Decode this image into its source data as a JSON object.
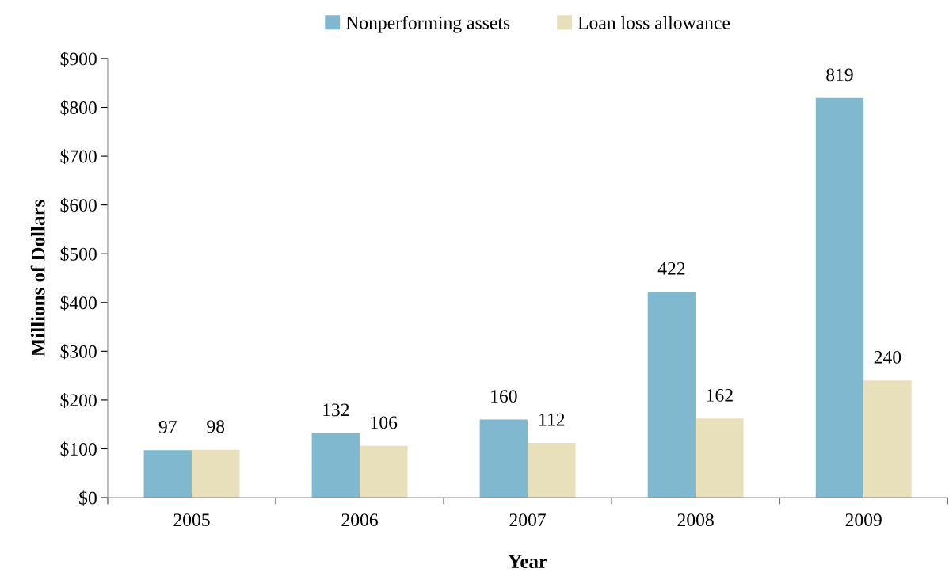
{
  "chart_data": {
    "type": "bar",
    "xlabel": "Year",
    "ylabel": "Millions of Dollars",
    "categories": [
      "2005",
      "2006",
      "2007",
      "2008",
      "2009"
    ],
    "series": [
      {
        "name": "Nonperforming assets",
        "color": "#7fb8cf",
        "values": [
          97,
          132,
          160,
          422,
          819
        ]
      },
      {
        "name": "Loan loss allowance",
        "color": "#e8dfbb",
        "values": [
          98,
          106,
          112,
          162,
          240
        ]
      }
    ],
    "ylim": [
      0,
      900
    ],
    "yticks": [
      {
        "value": 0,
        "label": "$0"
      },
      {
        "value": 100,
        "label": "$100"
      },
      {
        "value": 200,
        "label": "$200"
      },
      {
        "value": 300,
        "label": "$300"
      },
      {
        "value": 400,
        "label": "$400"
      },
      {
        "value": 500,
        "label": "$500"
      },
      {
        "value": 600,
        "label": "$600"
      },
      {
        "value": 700,
        "label": "$700"
      },
      {
        "value": 800,
        "label": "$800"
      },
      {
        "value": 900,
        "label": "$900"
      }
    ],
    "data_labels": true,
    "grid": false,
    "legend": "top"
  }
}
